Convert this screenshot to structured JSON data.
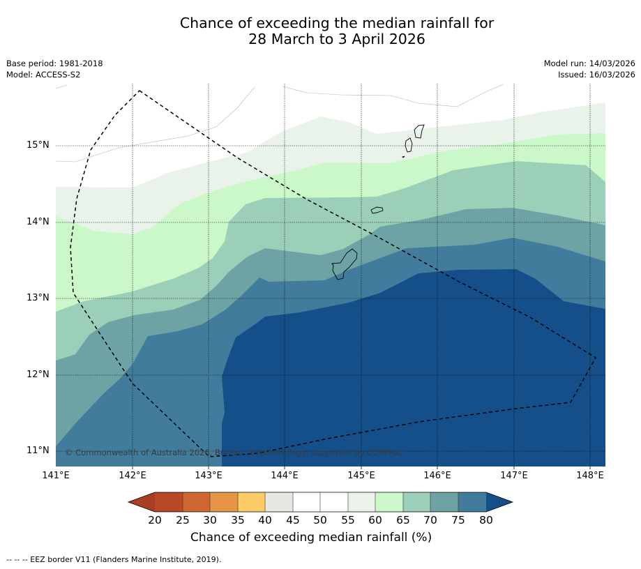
{
  "title": {
    "line1": "Chance of exceeding the median rainfall for",
    "line2": "28 March to 3 April 2026"
  },
  "meta": {
    "base_period": "Base period: 1981-2018",
    "model": "Model: ACCESS-S2",
    "model_run": "Model run: 14/03/2026",
    "issued": "Issued: 16/03/2026"
  },
  "map": {
    "lat_labels": [
      "15°N",
      "14°N",
      "13°N",
      "12°N",
      "11°N"
    ],
    "lon_labels": [
      "141°E",
      "142°E",
      "143°E",
      "144°E",
      "145°E",
      "146°E",
      "147°E",
      "148°E"
    ],
    "copyright": "© Commonwealth of Australia 2026, Bureau of Meteorology, supported by COSPPac"
  },
  "colorbar": {
    "title": "Chance of exceeding median rainfall (%)",
    "ticks": [
      "20",
      "25",
      "30",
      "35",
      "40",
      "45",
      "50",
      "55",
      "60",
      "65",
      "70",
      "75",
      "80"
    ],
    "colors": {
      "below_20": "#a93f22",
      "20_25": "#b84a27",
      "25_30": "#d0662f",
      "30_35": "#e49546",
      "35_40": "#fbcd67",
      "40_45": "#e9e7e2",
      "45_50": "#ffffff",
      "50_55": "#ffffff",
      "55_60": "#eaf3e9",
      "60_65": "#cbf8c8",
      "65_70": "#9ccfb8",
      "70_75": "#6ea3a5",
      "75_80": "#427c9c",
      "above_80": "#144f89"
    }
  },
  "legend_footer": "--  --  -- EEZ border V11 (Flanders Marine Institute, 2019)."
}
